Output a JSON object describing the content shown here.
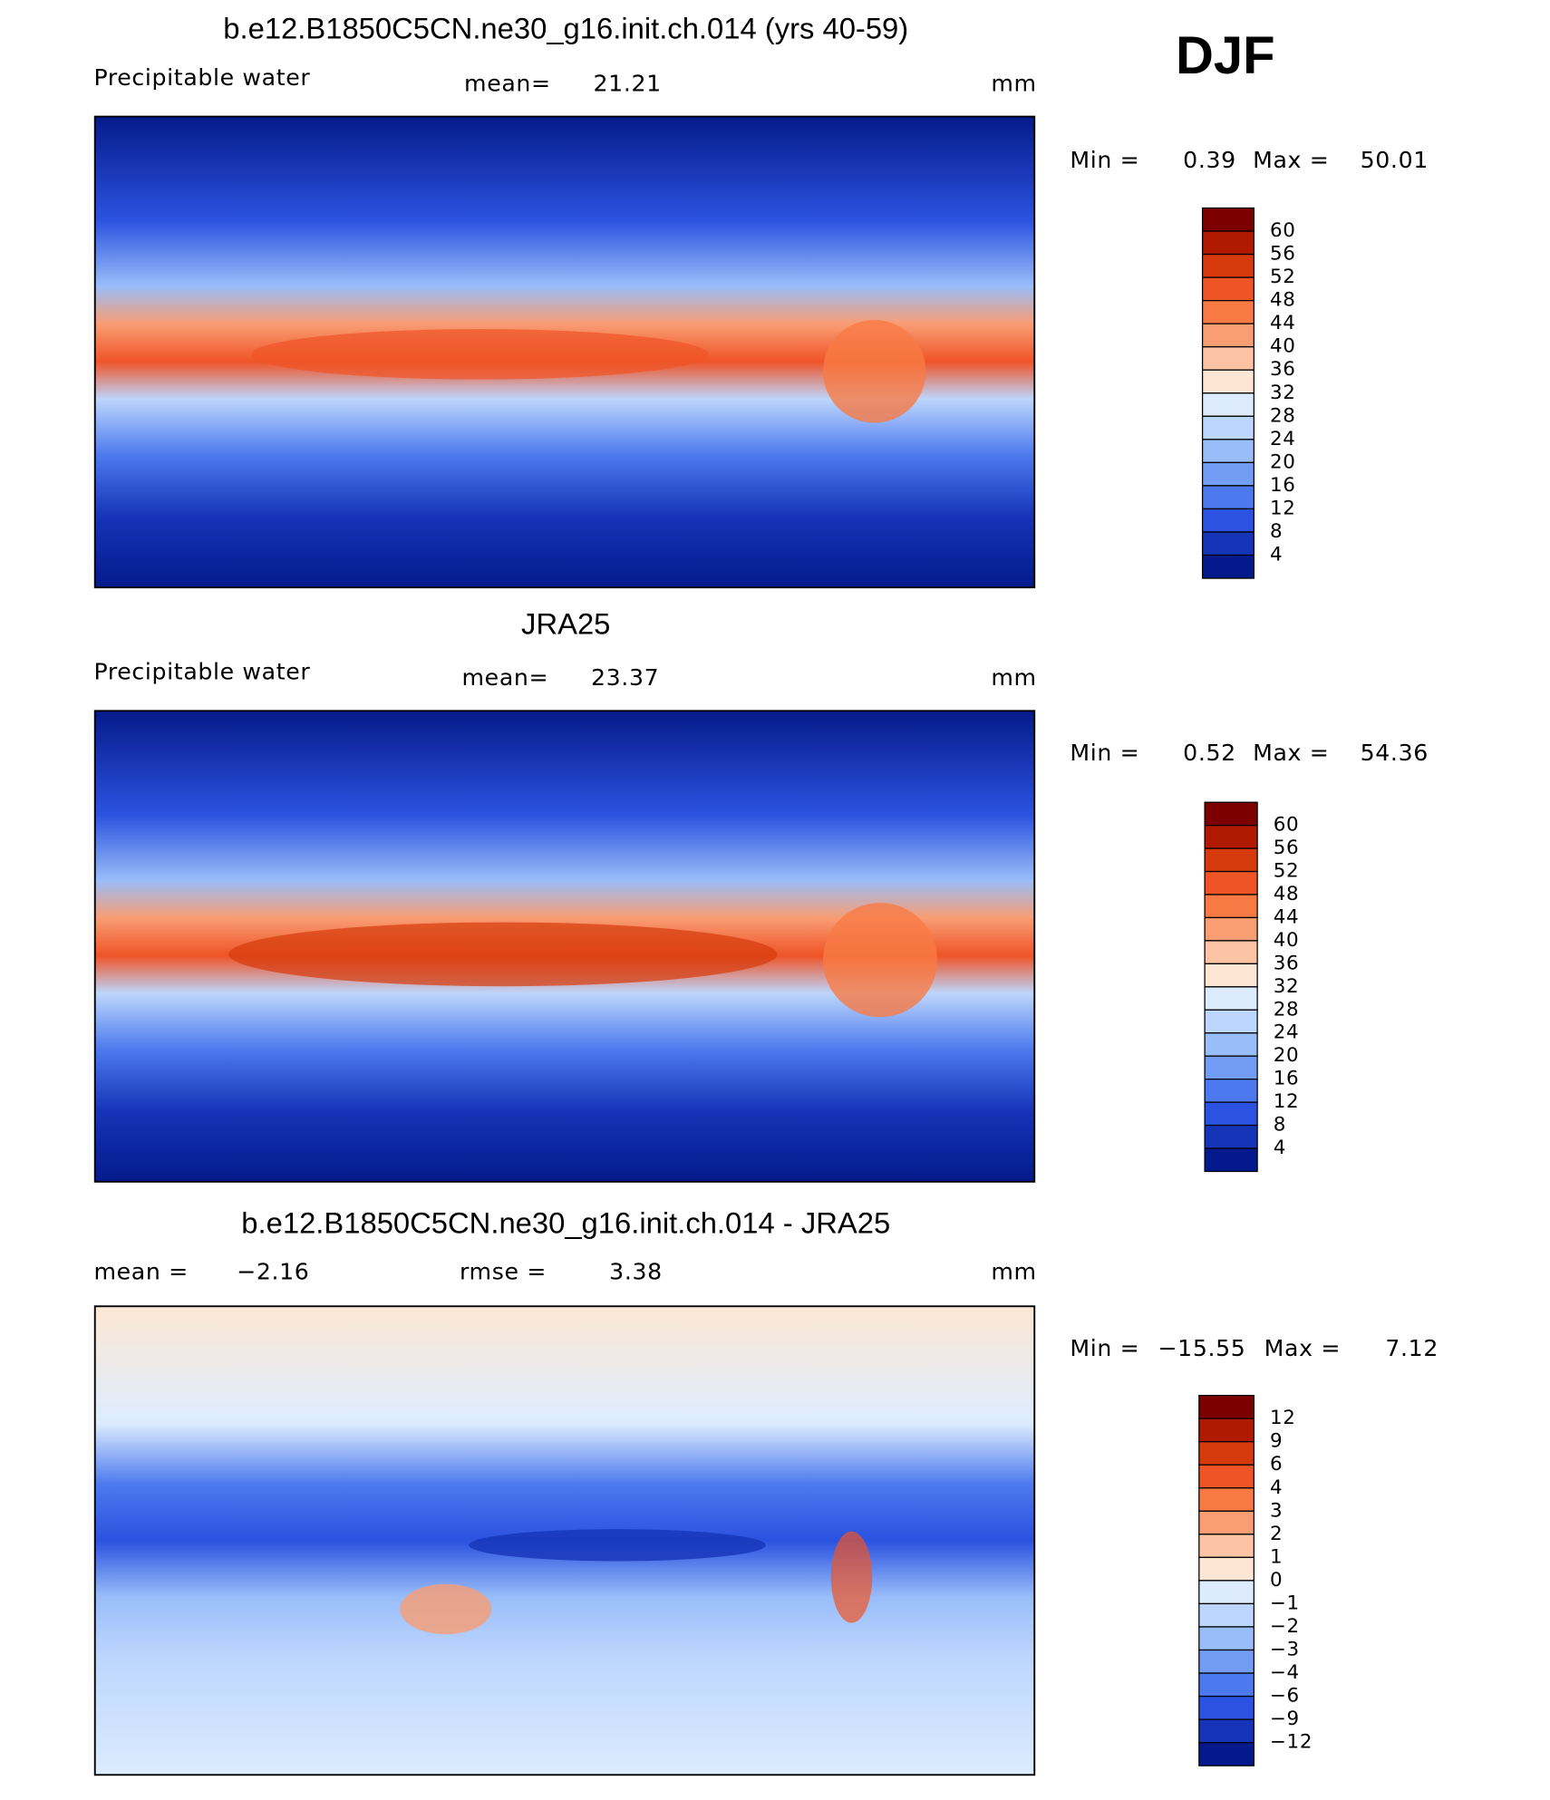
{
  "figure_label": "DJF",
  "panels": [
    {
      "title": "b.e12.B1850C5CN.ne30_g16.init.ch.014 (yrs 40-59)",
      "variable": "Precipitable water",
      "mean_label": "mean=",
      "mean": 21.21,
      "units": "mm",
      "min_label": "Min =",
      "min": 0.39,
      "max_label": "Max =",
      "max": 50.01,
      "colorbar": {
        "labels": [
          "60",
          "56",
          "52",
          "48",
          "44",
          "40",
          "36",
          "32",
          "28",
          "24",
          "20",
          "16",
          "12",
          "8",
          "4"
        ],
        "colors": [
          "#7d0000",
          "#b01a00",
          "#d63a0c",
          "#ef5427",
          "#f77a45",
          "#f99d73",
          "#fcc4a5",
          "#fde7d4",
          "#dcecfe",
          "#bdd6fd",
          "#99bdf9",
          "#739cf4",
          "#4c79ee",
          "#2b52e0",
          "#1634b8",
          "#041a8c"
        ]
      }
    },
    {
      "title": "JRA25",
      "variable": "Precipitable water",
      "mean_label": "mean=",
      "mean": 23.37,
      "units": "mm",
      "min_label": "Min =",
      "min": 0.52,
      "max_label": "Max =",
      "max": 54.36,
      "colorbar": {
        "labels": [
          "60",
          "56",
          "52",
          "48",
          "44",
          "40",
          "36",
          "32",
          "28",
          "24",
          "20",
          "16",
          "12",
          "8",
          "4"
        ],
        "colors": [
          "#7d0000",
          "#b01a00",
          "#d63a0c",
          "#ef5427",
          "#f77a45",
          "#f99d73",
          "#fcc4a5",
          "#fde7d4",
          "#dcecfe",
          "#bdd6fd",
          "#99bdf9",
          "#739cf4",
          "#4c79ee",
          "#2b52e0",
          "#1634b8",
          "#041a8c"
        ]
      }
    },
    {
      "title": "b.e12.B1850C5CN.ne30_g16.init.ch.014 - JRA25",
      "mean_label": "mean =",
      "mean": "−2.16",
      "rmse_label": "rmse =",
      "rmse": 3.38,
      "units": "mm",
      "min_label": "Min =",
      "min": "−15.55",
      "max_label": "Max =",
      "max": 7.12,
      "colorbar": {
        "labels": [
          "12",
          "9",
          "6",
          "4",
          "3",
          "2",
          "1",
          "0",
          "−1",
          "−2",
          "−3",
          "−4",
          "−6",
          "−9",
          "−12"
        ],
        "colors": [
          "#7d0000",
          "#b01a00",
          "#d63a0c",
          "#ef5427",
          "#f77a45",
          "#f99d73",
          "#fcc4a5",
          "#fde7d4",
          "#dcecfe",
          "#bdd6fd",
          "#99bdf9",
          "#739cf4",
          "#4c79ee",
          "#2b52e0",
          "#1634b8",
          "#041a8c"
        ]
      }
    }
  ]
}
